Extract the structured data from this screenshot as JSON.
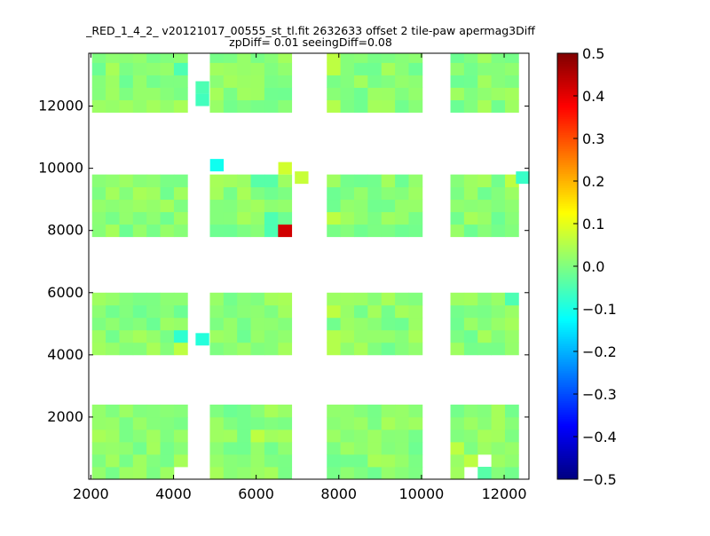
{
  "chart_data": {
    "type": "heatmap",
    "title_line1": "_RED_1_4_2_ v20121017_00555_st_tl.fit 2632633 offset 2 tile-paw apermag3Diff",
    "title_line2": "zpDiff= 0.01 seeingDiff=0.08",
    "xlabel": "",
    "ylabel": "",
    "xlim": [
      1950,
      12600
    ],
    "ylim": [
      0,
      13700
    ],
    "xticks": [
      2000,
      4000,
      6000,
      8000,
      10000,
      12000
    ],
    "yticks": [
      2000,
      4000,
      6000,
      8000,
      10000,
      12000
    ],
    "colorbar": {
      "range": [
        -0.5,
        0.5
      ],
      "ticks": [
        "0.5",
        "0.4",
        "0.3",
        "0.2",
        "0.1",
        "0.0",
        "−0.1",
        "−0.2",
        "−0.3",
        "−0.4",
        "−0.5"
      ],
      "colormap": "jet"
    },
    "cell_size": [
      330,
      400
    ],
    "column_groups": [
      [
        2030,
        2360,
        2690,
        3020,
        3350,
        3680,
        4010
      ],
      [
        4880,
        5210,
        5540,
        5870,
        6200,
        6530
      ],
      [
        7710,
        8040,
        8370,
        8700,
        9030,
        9360,
        9690
      ],
      [
        10700,
        11030,
        11360,
        11690,
        12020
      ]
    ],
    "row_bands": [
      [
        0,
        400,
        800,
        1200,
        1600,
        2000
      ],
      [
        4000,
        4400,
        4800,
        5200,
        5600
      ],
      [
        7800,
        8200,
        8600,
        9000,
        9400
      ],
      [
        11800,
        12200,
        12600,
        13000,
        13400
      ]
    ],
    "default_value": 0.01,
    "special_cells": [
      {
        "x": 6700,
        "y": 8000,
        "v": 0.42
      },
      {
        "x": 5050,
        "y": 10100,
        "v": -0.11
      },
      {
        "x": 6700,
        "y": 10000,
        "v": 0.08
      },
      {
        "x": 7100,
        "y": 9700,
        "v": 0.07
      },
      {
        "x": 4100,
        "y": 4500,
        "v": -0.08
      },
      {
        "x": 4700,
        "y": 4500,
        "v": -0.09
      },
      {
        "x": 4100,
        "y": 4000,
        "v": 0.06
      },
      {
        "x": 4100,
        "y": 12000,
        "v": 0.04
      },
      {
        "x": 4100,
        "y": 13300,
        "v": -0.05
      },
      {
        "x": 4700,
        "y": 12600,
        "v": -0.05
      },
      {
        "x": 4700,
        "y": 12200,
        "v": -0.06
      },
      {
        "x": 12350,
        "y": 5800,
        "v": -0.05
      },
      {
        "x": 12450,
        "y": 9700,
        "v": -0.07
      },
      {
        "x": 12100,
        "y": 9700,
        "v": 0.06
      },
      {
        "x": 12300,
        "y": 11800,
        "v": 0.03
      },
      {
        "x": 7900,
        "y": 8400,
        "v": 0.06
      },
      {
        "x": 7900,
        "y": 5400,
        "v": 0.06
      },
      {
        "x": 7900,
        "y": 4400,
        "v": 0.05
      },
      {
        "x": 7900,
        "y": 12000,
        "v": 0.05
      },
      {
        "x": 7900,
        "y": 13400,
        "v": 0.06
      },
      {
        "x": 6100,
        "y": 1500,
        "v": 0.06
      },
      {
        "x": 10900,
        "y": 1000,
        "v": 0.06
      },
      {
        "x": 11200,
        "y": 600,
        "v": 0.06
      },
      {
        "x": 11650,
        "y": 200,
        "v": -0.04
      },
      {
        "x": 6300,
        "y": 8200,
        "v": -0.05
      },
      {
        "x": 6200,
        "y": 9600,
        "v": -0.04
      },
      {
        "x": 6700,
        "y": 5800,
        "v": 0.04
      },
      {
        "x": 3400,
        "y": 4200,
        "v": 0.04
      }
    ],
    "empty_cells": [
      {
        "x": 4700,
        "y": 13000
      },
      {
        "x": 8700,
        "y": 5800
      },
      {
        "x": 11550,
        "y": 600
      },
      {
        "x": 11250,
        "y": 200
      },
      {
        "x": 12300,
        "y": 8200
      },
      {
        "x": 12300,
        "y": 8600
      },
      {
        "x": 12300,
        "y": 9000
      },
      {
        "x": 4100,
        "y": 200
      },
      {
        "x": 12350,
        "y": 200
      },
      {
        "x": 12350,
        "y": 600
      }
    ]
  }
}
